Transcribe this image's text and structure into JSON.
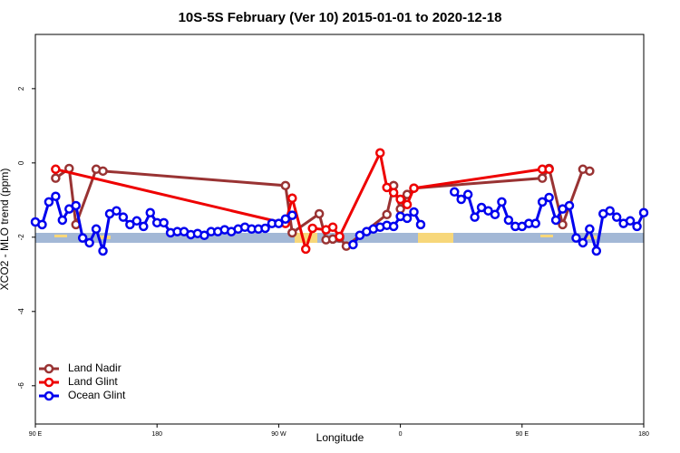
{
  "chart_data": {
    "type": "line",
    "title": "10S-5S February (Ver 10)   2015-01-01 to 2020-12-18",
    "x_label": "Longitude",
    "y_label": "XCO2 - MLO trend (ppm)",
    "xlim": [
      90,
      540
    ],
    "xticks": [
      {
        "value": 90,
        "label": "90 E"
      },
      {
        "value": 180,
        "label": "180"
      },
      {
        "value": 270,
        "label": "90 W"
      },
      {
        "value": 360,
        "label": "0"
      },
      {
        "value": 450,
        "label": "90 E"
      },
      {
        "value": 540,
        "label": "180"
      }
    ],
    "ylim": [
      -7.03,
      3.46
    ],
    "yticks": [
      -6,
      -4,
      -2,
      0,
      2
    ],
    "legend": "bottom left",
    "series": [
      {
        "name": "Land Nadir",
        "color": "#993333",
        "x": [
          105,
          115,
          120,
          135,
          140,
          275,
          280,
          300,
          305,
          310,
          315,
          320,
          350,
          355,
          360,
          365,
          370,
          465,
          470,
          480,
          495,
          500
        ],
        "values": [
          -0.41,
          -0.15,
          -1.66,
          -0.17,
          -0.22,
          -0.61,
          -1.88,
          -1.37,
          -2.07,
          -2.05,
          -2.02,
          -2.24,
          -1.39,
          -0.61,
          -1.24,
          -0.85,
          -0.68,
          -0.41,
          -0.15,
          -1.66,
          -0.17,
          -0.22
        ]
      },
      {
        "name": "Land Glint",
        "color": "#ee0000",
        "x": [
          105,
          275,
          280,
          290,
          295,
          305,
          310,
          315,
          345,
          350,
          355,
          360,
          365,
          370,
          465,
          470
        ],
        "values": [
          -0.17,
          -1.63,
          -0.95,
          -2.32,
          -1.76,
          -1.8,
          -1.73,
          -1.98,
          0.27,
          -0.66,
          -0.8,
          -0.98,
          -1.12,
          -0.68,
          -0.17,
          -0.17
        ]
      },
      {
        "name": "Ocean Glint",
        "color": "#0000ee",
        "x": [
          90,
          95,
          100,
          105,
          110,
          115,
          120,
          125,
          130,
          135,
          140,
          145,
          150,
          155,
          160,
          165,
          170,
          175,
          180,
          185,
          190,
          195,
          200,
          205,
          210,
          215,
          220,
          225,
          230,
          235,
          240,
          245,
          250,
          255,
          260,
          265,
          270,
          275,
          280,
          300,
          325,
          330,
          335,
          340,
          345,
          350,
          355,
          360,
          365,
          370,
          375,
          390,
          400,
          405,
          410,
          415,
          420,
          425,
          430,
          435,
          440,
          445,
          450,
          455,
          460,
          465,
          470,
          475,
          480,
          485,
          490,
          495,
          500,
          505,
          510,
          515,
          520,
          525,
          530,
          535,
          540
        ],
        "values": [
          -1.59,
          -1.66,
          -1.05,
          -0.9,
          -1.54,
          -1.24,
          -1.15,
          -2.02,
          -2.15,
          -1.78,
          -2.37,
          -1.37,
          -1.29,
          -1.46,
          -1.66,
          -1.56,
          -1.71,
          -1.34,
          -1.61,
          -1.61,
          -1.88,
          -1.85,
          -1.85,
          -1.93,
          -1.9,
          -1.95,
          -1.85,
          -1.85,
          -1.8,
          -1.85,
          -1.78,
          -1.73,
          -1.78,
          -1.78,
          -1.76,
          -1.63,
          -1.63,
          -1.51,
          -1.41,
          null,
          -2.2,
          -1.95,
          -1.85,
          -1.78,
          -1.73,
          -1.68,
          -1.71,
          -1.44,
          -1.49,
          -1.32,
          -1.66,
          null,
          -0.78,
          -0.98,
          -0.85,
          -1.46,
          -1.2,
          -1.29,
          -1.39,
          -1.05,
          -1.54,
          -1.71,
          -1.71,
          -1.63,
          -1.63,
          -1.05,
          -0.93,
          -1.54,
          -1.24,
          -1.15,
          -2.02,
          -2.15,
          -1.78,
          -2.37,
          -1.37,
          -1.29,
          -1.46,
          -1.63,
          -1.56,
          -1.71,
          -1.34
        ]
      }
    ]
  }
}
